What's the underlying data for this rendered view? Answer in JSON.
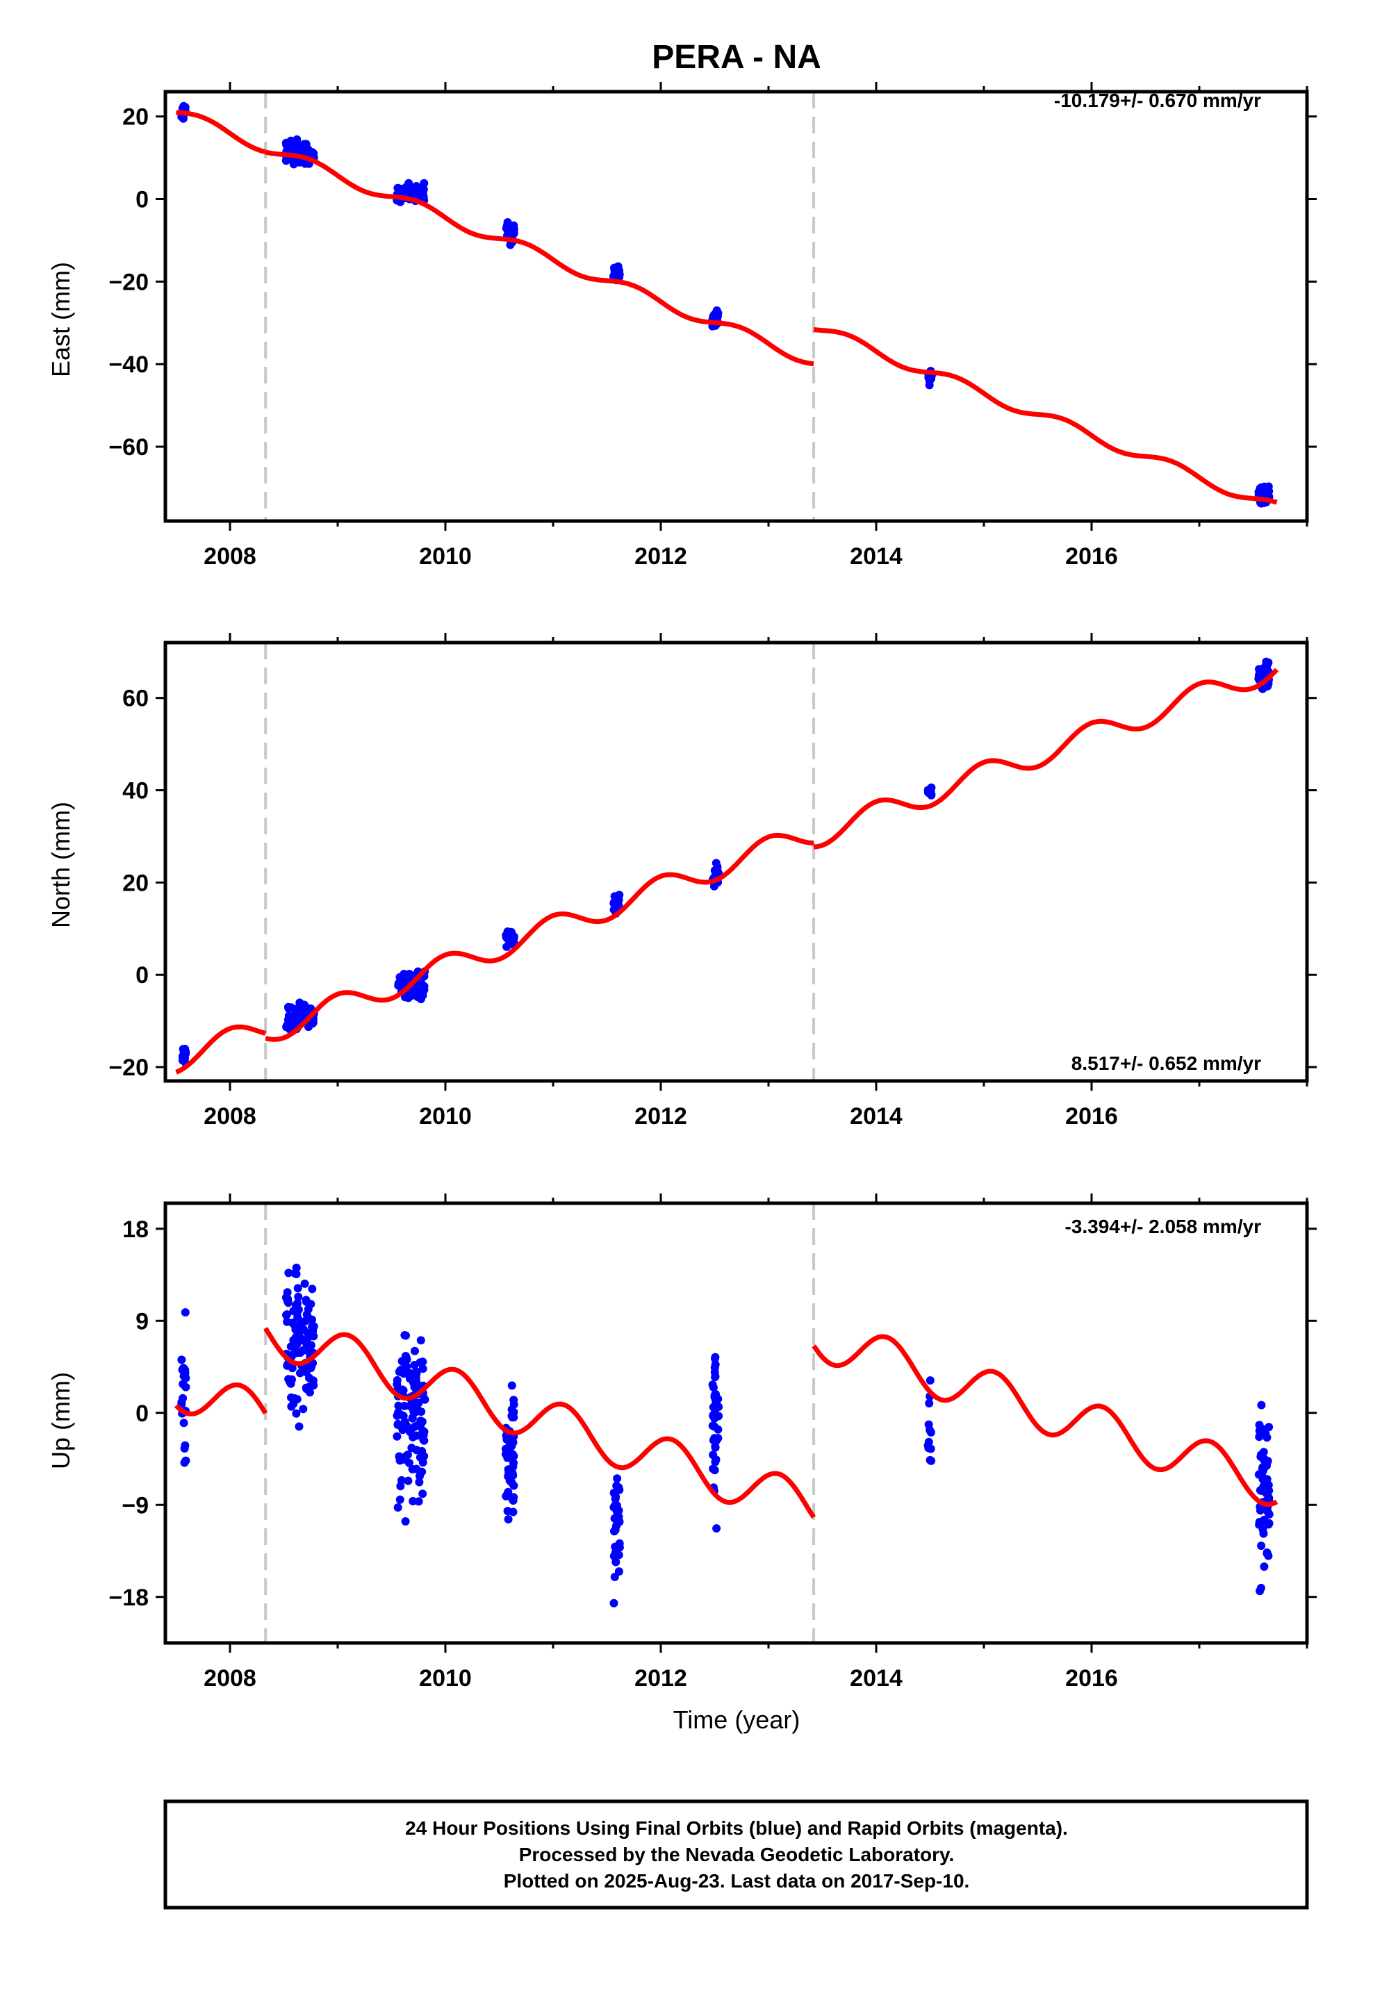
{
  "title": "PERA - NA",
  "footer": {
    "line1": "24 Hour Positions Using Final Orbits (blue) and Rapid Orbits (magenta).",
    "line2": "Processed by the Nevada Geodetic Laboratory.",
    "line3": "Plotted on 2025-Aug-23. Last data on 2017-Sep-10."
  },
  "colors": {
    "data_points": "#0000ff",
    "model_line": "#ff0000",
    "step_marker": "#c8c8c8"
  },
  "chart_data": [
    {
      "type": "scatter",
      "ylabel": "East (mm)",
      "xlabel": "",
      "rate_label": "-10.179+/- 0.670 mm/yr",
      "rate_position": "top-right",
      "xlim": [
        2007.4,
        2018.0
      ],
      "ylim": [
        -78,
        26
      ],
      "xticks": [
        2008,
        2010,
        2012,
        2014,
        2016
      ],
      "yticks": [
        -60,
        -40,
        -20,
        0,
        20
      ],
      "step_epochs": [
        2008.33,
        2013.42
      ],
      "data_epochs": [
        {
          "t": 2007.57,
          "spread": 0.02,
          "center": 21,
          "scatter": 2.5,
          "n": 16
        },
        {
          "t": 2008.65,
          "spread": 0.13,
          "center": 11,
          "scatter": 2.5,
          "n": 70
        },
        {
          "t": 2009.68,
          "spread": 0.13,
          "center": 1.5,
          "scatter": 1.8,
          "n": 65
        },
        {
          "t": 2010.6,
          "spread": 0.04,
          "center": -7.5,
          "scatter": 2,
          "n": 28
        },
        {
          "t": 2011.59,
          "spread": 0.03,
          "center": -18,
          "scatter": 2,
          "n": 18
        },
        {
          "t": 2012.51,
          "spread": 0.03,
          "center": -29,
          "scatter": 1.8,
          "n": 20
        },
        {
          "t": 2014.5,
          "spread": 0.02,
          "center": -43,
          "scatter": 1.8,
          "n": 10
        },
        {
          "t": 2017.6,
          "spread": 0.05,
          "center": -71.5,
          "scatter": 2,
          "n": 65
        }
      ],
      "model": {
        "segments": [
          {
            "start": 2007.5,
            "end": 2008.33,
            "offset": 21,
            "rate": -10.179
          },
          {
            "start": 2008.33,
            "end": 2013.42,
            "offset": 12.5,
            "rate": -10.179
          },
          {
            "start": 2013.42,
            "end": 2017.72,
            "offset": -31,
            "rate": -10.179
          }
        ],
        "ref_epoch": 2007.5,
        "seg_ref": [
          2007.5,
          2008.33,
          2013.42
        ],
        "annual_amp": 1.3,
        "annual_phase": 0.5
      }
    },
    {
      "type": "scatter",
      "ylabel": "North (mm)",
      "xlabel": "",
      "rate_label": "8.517+/- 0.652 mm/yr",
      "rate_position": "bottom-right",
      "xlim": [
        2007.4,
        2018.0
      ],
      "ylim": [
        -23,
        72
      ],
      "xticks": [
        2008,
        2010,
        2012,
        2014,
        2016
      ],
      "yticks": [
        -20,
        0,
        20,
        40,
        60
      ],
      "step_epochs": [
        2008.33,
        2013.42
      ],
      "data_epochs": [
        {
          "t": 2007.57,
          "spread": 0.02,
          "center": -17.5,
          "scatter": 1.6,
          "n": 14
        },
        {
          "t": 2008.65,
          "spread": 0.13,
          "center": -9.5,
          "scatter": 2.5,
          "n": 70
        },
        {
          "t": 2009.68,
          "spread": 0.13,
          "center": -2,
          "scatter": 2.5,
          "n": 65
        },
        {
          "t": 2010.6,
          "spread": 0.04,
          "center": 8,
          "scatter": 1.5,
          "n": 28
        },
        {
          "t": 2011.59,
          "spread": 0.03,
          "center": 15,
          "scatter": 1.8,
          "n": 18
        },
        {
          "t": 2012.51,
          "spread": 0.03,
          "center": 21.5,
          "scatter": 2,
          "n": 20
        },
        {
          "t": 2014.5,
          "spread": 0.02,
          "center": 39.5,
          "scatter": 1.2,
          "n": 10
        },
        {
          "t": 2017.6,
          "spread": 0.05,
          "center": 65,
          "scatter": 2,
          "n": 65
        }
      ],
      "model": {
        "segments": [
          {
            "start": 2007.5,
            "end": 2008.33,
            "offset": -18.5,
            "rate": 8.517
          },
          {
            "start": 2008.33,
            "end": 2013.42,
            "offset": -12.5,
            "rate": 8.517
          },
          {
            "start": 2013.42,
            "end": 2017.72,
            "offset": 30,
            "rate": 8.517
          }
        ],
        "seg_ref": [
          2007.5,
          2008.33,
          2013.42
        ],
        "annual_amp": 2.6,
        "annual_phase": 0.75
      }
    },
    {
      "type": "scatter",
      "ylabel": "Up (mm)",
      "xlabel": "Time (year)",
      "rate_label": "-3.394+/- 2.058 mm/yr",
      "rate_position": "top-right",
      "xlim": [
        2007.4,
        2018.0
      ],
      "ylim": [
        -22.5,
        20.5
      ],
      "xticks": [
        2008,
        2010,
        2012,
        2014,
        2016
      ],
      "yticks": [
        -18,
        -9,
        0,
        9,
        18
      ],
      "step_epochs": [
        2008.33,
        2013.42
      ],
      "data_epochs": [
        {
          "t": 2007.57,
          "spread": 0.02,
          "center": 2,
          "scatter": 5,
          "n": 22
        },
        {
          "t": 2008.65,
          "spread": 0.13,
          "center": 7,
          "scatter": 6,
          "n": 110
        },
        {
          "t": 2009.68,
          "spread": 0.13,
          "center": 0,
          "scatter": 7,
          "n": 120
        },
        {
          "t": 2010.6,
          "spread": 0.04,
          "center": -4,
          "scatter": 5,
          "n": 55
        },
        {
          "t": 2011.59,
          "spread": 0.03,
          "center": -11,
          "scatter": 5,
          "n": 35
        },
        {
          "t": 2012.51,
          "spread": 0.03,
          "center": 0,
          "scatter": 6,
          "n": 40
        },
        {
          "t": 2014.5,
          "spread": 0.02,
          "center": 0,
          "scatter": 4,
          "n": 12
        },
        {
          "t": 2017.6,
          "spread": 0.05,
          "center": -7,
          "scatter": 6.5,
          "n": 70
        }
      ],
      "model": {
        "segments": [
          {
            "start": 2007.5,
            "end": 2008.33,
            "offset": 2.5,
            "rate": -3.394
          },
          {
            "start": 2008.33,
            "end": 2013.42,
            "offset": 8,
            "rate": -3.394
          },
          {
            "start": 2013.42,
            "end": 2017.72,
            "offset": 7.5,
            "rate": -3.394
          }
        ],
        "seg_ref": [
          2007.5,
          2008.33,
          2013.42
        ],
        "annual_amp": 2.2,
        "annual_phase": 0.85
      }
    }
  ]
}
